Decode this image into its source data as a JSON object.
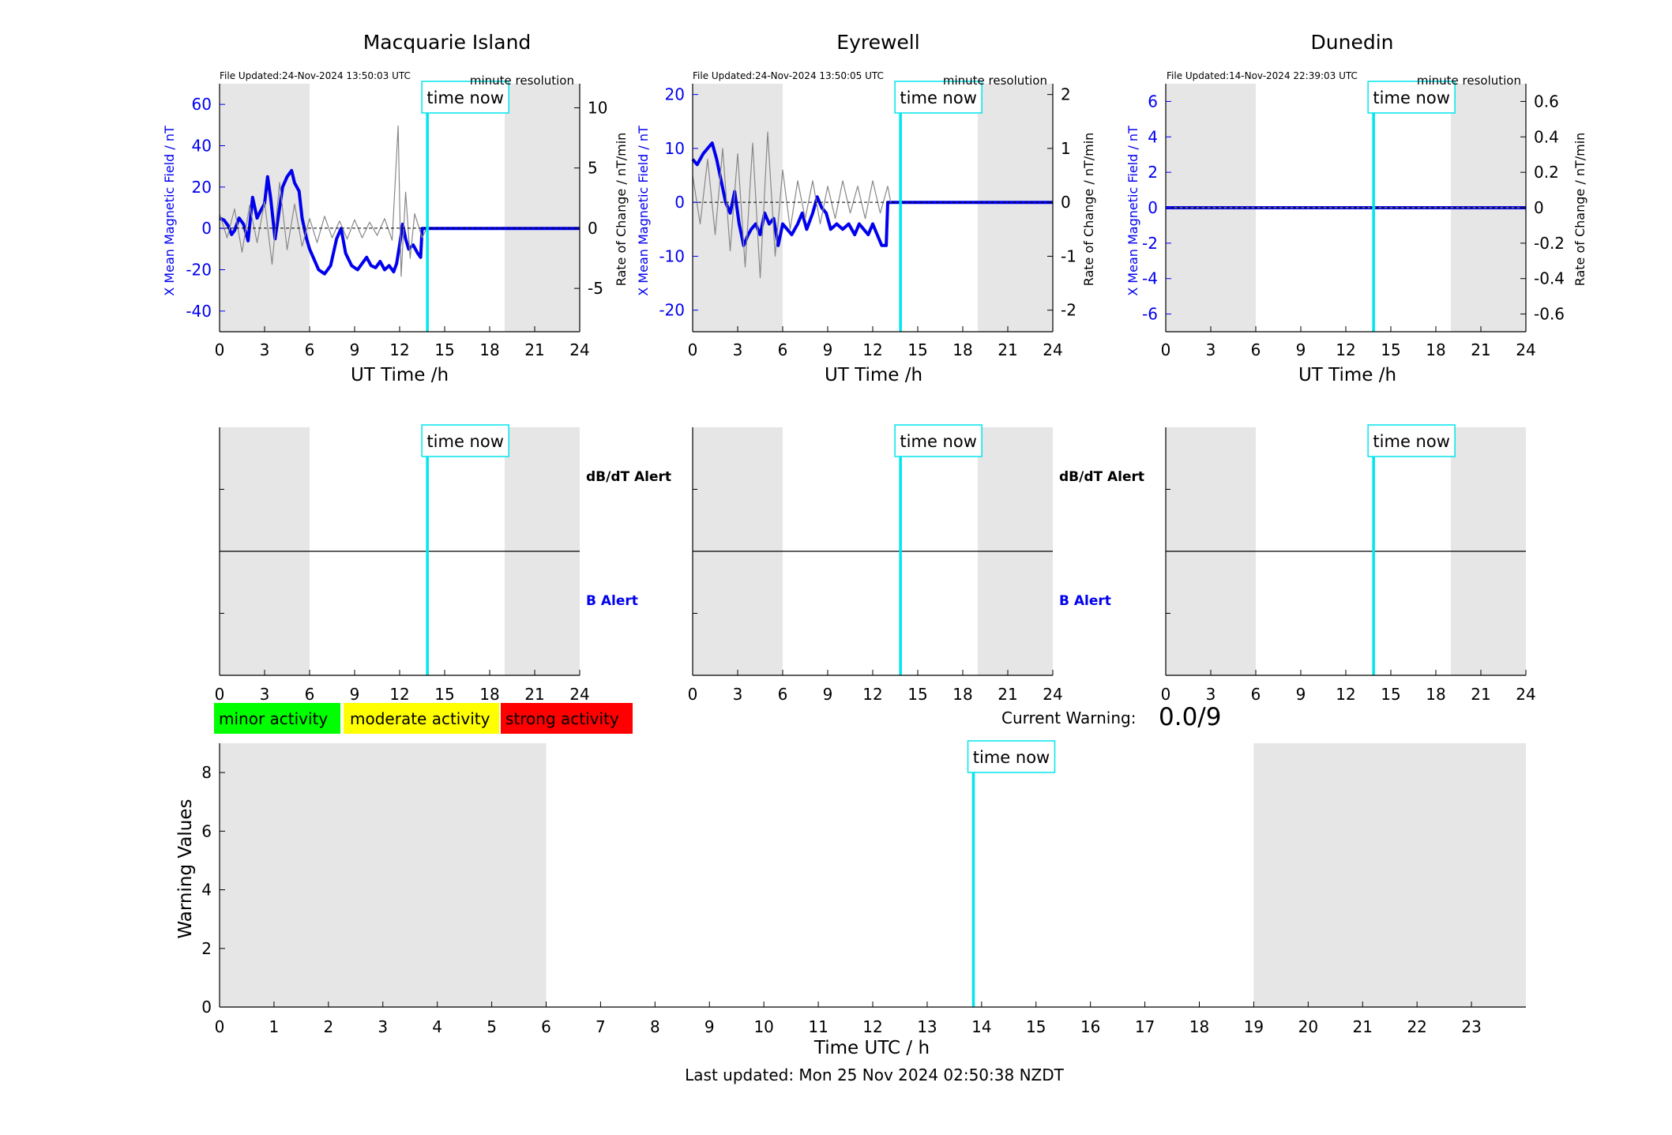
{
  "colors": {
    "x_series": "#0000ee",
    "rate_series": "#888888",
    "time_now": "#00e5ee",
    "night_shade": "#e6e6e6",
    "minor": "#00ff00",
    "moderate": "#ffff00",
    "strong": "#ff0000"
  },
  "time_now_label": "time now",
  "station_panels": [
    {
      "title": "Macquarie Island",
      "file_updated": "File Updated:24-Nov-2024 13:50:03 UTC",
      "resolution": "minute resolution",
      "left_ylabel": "X Mean Magnetic Field / nT",
      "right_ylabel": "Rate of Change / nT/min",
      "xlabel": "UT Time /h"
    },
    {
      "title": "Eyrewell",
      "file_updated": "File Updated:24-Nov-2024 13:50:05 UTC",
      "resolution": "minute resolution",
      "left_ylabel": "X Mean Magnetic Field / nT",
      "right_ylabel": "Rate of Change / nT/min",
      "xlabel": "UT Time /h"
    },
    {
      "title": "Dunedin",
      "file_updated": "File Updated:14-Nov-2024 22:39:03 UTC",
      "resolution": "minute resolution",
      "left_ylabel": "X Mean Magnetic Field / nT",
      "right_ylabel": "Rate of Change / nT/min",
      "xlabel": "UT Time /h"
    }
  ],
  "alert_panels": [
    {
      "dbdt_label": "dB/dT Alert",
      "b_label": "B Alert"
    },
    {
      "dbdt_label": "dB/dT Alert",
      "b_label": "B Alert"
    },
    {
      "dbdt_label": "",
      "b_label": ""
    }
  ],
  "legend": {
    "minor": "minor activity",
    "moderate": "moderate activity",
    "strong": "strong activity"
  },
  "current_warning": {
    "label": "Current Warning:",
    "value": "0.0/9"
  },
  "warning_chart": {
    "ylabel": "Warning Values",
    "xlabel": "Time UTC / h"
  },
  "last_updated": "Last updated: Mon 25 Nov 2024 02:50:38 NZDT",
  "chart_data": [
    {
      "type": "line",
      "title": "Macquarie Island",
      "xlabel": "UT Time /h",
      "ylabel": "X Mean Magnetic Field / nT",
      "y2label": "Rate of Change / nT/min",
      "xlim": [
        0,
        24
      ],
      "ylim": [
        -50,
        70
      ],
      "y2lim": [
        -8.6,
        12
      ],
      "xticks": [
        0,
        3,
        6,
        9,
        12,
        15,
        18,
        21,
        24
      ],
      "yticks": [
        -40,
        -20,
        0,
        20,
        40,
        60
      ],
      "y2ticks": [
        -5,
        0,
        5,
        10
      ],
      "night_shading": [
        [
          0,
          6
        ],
        [
          19,
          24
        ]
      ],
      "time_now": 13.85,
      "series": [
        {
          "name": "X Mean Magnetic Field",
          "axis": "left",
          "x": [
            0,
            0.3,
            0.6,
            0.8,
            1.0,
            1.3,
            1.6,
            1.9,
            2.2,
            2.5,
            2.7,
            3.0,
            3.2,
            3.4,
            3.7,
            4.0,
            4.2,
            4.5,
            4.8,
            5.0,
            5.3,
            5.5,
            5.8,
            6.0,
            6.3,
            6.6,
            7.0,
            7.4,
            7.8,
            8.1,
            8.4,
            8.8,
            9.2,
            9.5,
            9.8,
            10.1,
            10.4,
            10.7,
            11.0,
            11.3,
            11.6,
            11.8,
            12.0,
            12.2,
            12.4,
            12.6,
            12.9,
            13.2,
            13.4,
            13.5,
            13.8,
            24
          ],
          "y": [
            5,
            4,
            1,
            -3,
            -1,
            5,
            2,
            -6,
            15,
            5,
            8,
            12,
            25,
            15,
            -5,
            10,
            20,
            25,
            28,
            22,
            18,
            5,
            -5,
            -10,
            -15,
            -20,
            -22,
            -18,
            -5,
            0,
            -12,
            -18,
            -20,
            -17,
            -14,
            -18,
            -19,
            -16,
            -20,
            -18,
            -21,
            -17,
            -8,
            2,
            -5,
            -10,
            -8,
            -12,
            -14,
            0,
            0,
            0
          ]
        },
        {
          "name": "Rate of Change",
          "axis": "right",
          "x": [
            0,
            0.5,
            1,
            1.5,
            2,
            2.5,
            3,
            3.5,
            4,
            4.5,
            5,
            5.5,
            6,
            6.5,
            7,
            7.5,
            8,
            8.5,
            9,
            9.5,
            10,
            10.5,
            11,
            11.5,
            11.9,
            12.1,
            12.4,
            12.7,
            13.0,
            13.5,
            13.8
          ],
          "y": [
            1.2,
            -0.8,
            1.6,
            -2.0,
            1.9,
            -1.2,
            2.2,
            -3.0,
            3.8,
            -1.8,
            2.0,
            -1.5,
            0.8,
            -1.2,
            1.0,
            -0.8,
            0.6,
            -0.9,
            0.7,
            -0.8,
            0.5,
            -0.6,
            0.8,
            -1.0,
            8.5,
            -4.0,
            3.0,
            -2.5,
            1.2,
            -0.8,
            0
          ]
        }
      ]
    },
    {
      "type": "line",
      "title": "Eyrewell",
      "xlabel": "UT Time /h",
      "ylabel": "X Mean Magnetic Field / nT",
      "y2label": "Rate of Change / nT/min",
      "xlim": [
        0,
        24
      ],
      "ylim": [
        -24,
        22
      ],
      "y2lim": [
        -2.4,
        2.2
      ],
      "xticks": [
        0,
        3,
        6,
        9,
        12,
        15,
        18,
        21,
        24
      ],
      "yticks": [
        -20,
        -10,
        0,
        10,
        20
      ],
      "y2ticks": [
        -2,
        -1,
        0,
        1,
        2
      ],
      "night_shading": [
        [
          0,
          6
        ],
        [
          19,
          24
        ]
      ],
      "time_now": 13.85,
      "series": [
        {
          "name": "X Mean Magnetic Field",
          "axis": "left",
          "x": [
            0,
            0.3,
            0.7,
            1.0,
            1.3,
            1.6,
            1.9,
            2.2,
            2.5,
            2.8,
            3.1,
            3.4,
            3.7,
            3.9,
            4.2,
            4.5,
            4.8,
            5.1,
            5.4,
            5.7,
            6.0,
            6.3,
            6.6,
            7.0,
            7.3,
            7.6,
            8.0,
            8.3,
            8.6,
            8.9,
            9.2,
            9.6,
            10.0,
            10.4,
            10.8,
            11.1,
            11.4,
            11.7,
            12.0,
            12.3,
            12.6,
            12.9,
            13.0,
            13.2,
            24
          ],
          "y": [
            8,
            7,
            9,
            10,
            11,
            8,
            4,
            0,
            -2,
            2,
            -4,
            -8,
            -6,
            -5,
            -4,
            -6,
            -2,
            -4,
            -3,
            -8,
            -4,
            -5,
            -6,
            -4,
            -2,
            -5,
            -2,
            1,
            -1,
            -2,
            -5,
            -4,
            -5,
            -4,
            -6,
            -4,
            -5,
            -6,
            -4,
            -6,
            -8,
            -8,
            0,
            0,
            0
          ]
        },
        {
          "name": "Rate of Change",
          "axis": "right",
          "x": [
            0,
            0.5,
            1,
            1.5,
            2,
            2.5,
            3,
            3.5,
            4,
            4.5,
            5,
            5.5,
            6,
            6.5,
            7,
            7.5,
            8,
            8.5,
            9,
            9.5,
            10,
            10.5,
            11,
            11.5,
            12,
            12.5,
            13,
            13.2
          ],
          "y": [
            0.5,
            -0.4,
            0.8,
            -0.6,
            1.0,
            -0.9,
            0.9,
            -1.2,
            1.1,
            -1.4,
            1.3,
            -1.0,
            0.6,
            -0.5,
            0.4,
            -0.3,
            0.4,
            -0.4,
            0.3,
            -0.3,
            0.4,
            -0.2,
            0.3,
            -0.3,
            0.4,
            -0.2,
            0.3,
            0
          ]
        }
      ]
    },
    {
      "type": "line",
      "title": "Dunedin",
      "xlabel": "UT Time /h",
      "ylabel": "X Mean Magnetic Field / nT",
      "y2label": "Rate of Change / nT/min",
      "xlim": [
        0,
        24
      ],
      "ylim": [
        -7,
        7
      ],
      "y2lim": [
        -0.7,
        0.7
      ],
      "xticks": [
        0,
        3,
        6,
        9,
        12,
        15,
        18,
        21,
        24
      ],
      "yticks": [
        -6,
        -4,
        -2,
        0,
        2,
        4,
        6
      ],
      "y2ticks": [
        -0.6,
        -0.4,
        -0.2,
        0,
        0.2,
        0.4,
        0.6
      ],
      "night_shading": [
        [
          0,
          6
        ],
        [
          19,
          24
        ]
      ],
      "time_now": 13.85,
      "series": [
        {
          "name": "X Mean Magnetic Field",
          "axis": "left",
          "x": [
            0,
            24
          ],
          "y": [
            0,
            0
          ]
        },
        {
          "name": "Rate of Change",
          "axis": "right",
          "x": [
            0,
            24
          ],
          "y": [
            0,
            0
          ]
        }
      ]
    },
    {
      "type": "line",
      "title": "",
      "xlabel": "",
      "ylabel": "",
      "xlim": [
        0,
        24
      ],
      "ylim": [
        -1,
        1
      ],
      "xticks": [
        0,
        3,
        6,
        9,
        12,
        15,
        18,
        21,
        24
      ],
      "night_shading": [
        [
          0,
          6
        ],
        [
          19,
          24
        ]
      ],
      "time_now": 13.85,
      "series": []
    },
    {
      "type": "line",
      "title": "",
      "xlabel": "",
      "ylabel": "",
      "xlim": [
        0,
        24
      ],
      "ylim": [
        -1,
        1
      ],
      "xticks": [
        0,
        3,
        6,
        9,
        12,
        15,
        18,
        21,
        24
      ],
      "night_shading": [
        [
          0,
          6
        ],
        [
          19,
          24
        ]
      ],
      "time_now": 13.85,
      "series": []
    },
    {
      "type": "line",
      "title": "",
      "xlabel": "",
      "ylabel": "",
      "xlim": [
        0,
        24
      ],
      "ylim": [
        -1,
        1
      ],
      "xticks": [
        0,
        3,
        6,
        9,
        12,
        15,
        18,
        21,
        24
      ],
      "night_shading": [
        [
          0,
          6
        ],
        [
          19,
          24
        ]
      ],
      "time_now": 13.85,
      "series": []
    },
    {
      "type": "line",
      "title": "",
      "xlabel": "Time UTC / h",
      "ylabel": "Warning Values",
      "xlim": [
        0,
        24
      ],
      "ylim": [
        0,
        9
      ],
      "xticks": [
        0,
        1,
        2,
        3,
        4,
        5,
        6,
        7,
        8,
        9,
        10,
        11,
        12,
        13,
        14,
        15,
        16,
        17,
        18,
        19,
        20,
        21,
        22,
        23
      ],
      "yticks": [
        0,
        2,
        4,
        6,
        8
      ],
      "night_shading": [
        [
          0,
          6
        ],
        [
          19,
          24
        ]
      ],
      "time_now": 13.85,
      "series": []
    }
  ]
}
